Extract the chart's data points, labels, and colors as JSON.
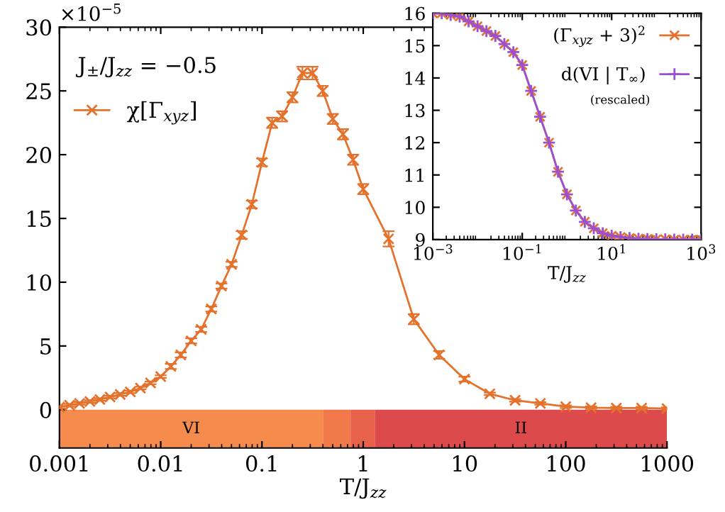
{
  "chart_data": [
    {
      "type": "line",
      "xlabel": "T/J$_{zz}$",
      "log": "x",
      "xlim": [
        0.001,
        1000
      ],
      "xticks": [
        0.001,
        0.01,
        0.1,
        1,
        10,
        100,
        1000
      ],
      "ylim": [
        -3,
        30
      ],
      "yticks": [
        0,
        5,
        10,
        15,
        20,
        25,
        30
      ],
      "grid": false,
      "legend": "top left",
      "marker": "cross",
      "annotations": [
        "×10$^{−5}$",
        "J$_{±}$/J$_{zz}$ = −0.5"
      ],
      "x": [
        0.001,
        0.00126,
        0.00158,
        0.002,
        0.00251,
        0.00316,
        0.00398,
        0.00501,
        0.00631,
        0.00794,
        0.01,
        0.0126,
        0.0158,
        0.02,
        0.0251,
        0.0316,
        0.0398,
        0.0501,
        0.0631,
        0.0794,
        0.1,
        0.126,
        0.158,
        0.2,
        0.251,
        0.316,
        0.398,
        0.501,
        0.631,
        0.794,
        1,
        1.78,
        3.16,
        5.62,
        10,
        17.8,
        31.6,
        56.2,
        100,
        178,
        316,
        562,
        1000
      ],
      "series": [
        {
          "name": "χ[Γ$_{xyz}$]",
          "color": "#e4722c",
          "values": [
            0.2,
            0.35,
            0.5,
            0.65,
            0.8,
            1.0,
            1.2,
            1.4,
            1.7,
            2.1,
            2.6,
            3.4,
            4.3,
            5.4,
            6.3,
            7.9,
            9.7,
            11.4,
            13.7,
            16.1,
            19.4,
            22.5,
            23.0,
            24.5,
            26.4,
            26.4,
            25.0,
            22.8,
            21.6,
            19.6,
            17.3,
            13.4,
            7.1,
            4.3,
            2.4,
            1.25,
            0.74,
            0.5,
            0.24,
            0.16,
            0.13,
            0.13,
            0.09
          ],
          "errors": [
            0.1,
            0.1,
            0.1,
            0.1,
            0.1,
            0.1,
            0.1,
            0.1,
            0.1,
            0.1,
            0.1,
            0.2,
            0.2,
            0.2,
            0.2,
            0.2,
            0.2,
            0.2,
            0.3,
            0.3,
            0.3,
            0.4,
            0.4,
            0.4,
            0.5,
            0.5,
            0.4,
            0.4,
            0.4,
            0.4,
            0.4,
            0.6,
            0.4,
            0.3,
            0.2,
            0.1,
            0.1,
            0.1,
            0.1,
            0.1,
            0.1,
            0.1,
            0.1
          ]
        }
      ],
      "bands": [
        {
          "axis": "x",
          "from": 0.001,
          "to": 0.4,
          "label": "VI",
          "color": "#f68b4e"
        },
        {
          "axis": "x",
          "from": 0.4,
          "to": 0.75,
          "color": "#f27a4a"
        },
        {
          "axis": "x",
          "from": 0.75,
          "to": 1.3,
          "color": "#e8614b"
        },
        {
          "axis": "x",
          "from": 1.3,
          "to": 1000,
          "label": "II",
          "color": "#dd4a4b"
        }
      ]
    },
    {
      "type": "line",
      "xlabel": "T/J$_{zz}$",
      "log": "x",
      "xlim": [
        0.001,
        1000
      ],
      "xticks": [
        {
          "value": 0.001,
          "label": "10$^{−3}$"
        },
        {
          "value": 0.1,
          "label": "10$^{−1}$"
        },
        {
          "value": 10,
          "label": "10$^{1}$"
        },
        {
          "value": 1000,
          "label": "10$^{3}$"
        }
      ],
      "ylim": [
        9,
        16
      ],
      "yticks": [
        9,
        10,
        11,
        12,
        13,
        14,
        15,
        16
      ],
      "grid": false,
      "legend": "top right",
      "annotations": [
        "(rescaled)"
      ],
      "x": [
        0.001,
        0.00158,
        0.00251,
        0.00398,
        0.00631,
        0.01,
        0.0158,
        0.0251,
        0.0398,
        0.0631,
        0.1,
        0.158,
        0.251,
        0.398,
        0.631,
        1,
        1.58,
        2.51,
        3.98,
        6.31,
        10,
        15.8,
        25.1,
        39.8,
        63.1,
        100,
        158,
        251,
        398,
        631,
        1000
      ],
      "series": [
        {
          "name": "(Γ$_{xyz}$ + 3)$^{2}$",
          "color": "#e4722c",
          "marker": "cross",
          "values": [
            16.0,
            16.0,
            15.95,
            15.9,
            15.75,
            15.6,
            15.45,
            15.3,
            15.05,
            14.8,
            14.4,
            13.6,
            12.8,
            12.0,
            11.1,
            10.4,
            9.9,
            9.55,
            9.35,
            9.2,
            9.12,
            9.08,
            9.05,
            9.03,
            9.02,
            9.01,
            9.01,
            9.0,
            9.0,
            9.0,
            9.0
          ]
        },
        {
          "name": "d(VI | T$_{∞}$)",
          "color": "#9b4fd1",
          "marker": "plus",
          "values": [
            16.0,
            16.0,
            15.95,
            15.9,
            15.75,
            15.6,
            15.45,
            15.3,
            15.05,
            14.8,
            14.4,
            13.6,
            12.8,
            12.0,
            11.1,
            10.4,
            9.9,
            9.55,
            9.35,
            9.2,
            9.12,
            9.08,
            9.05,
            9.03,
            9.02,
            9.01,
            9.01,
            9.0,
            9.0,
            9.0,
            9.0
          ]
        }
      ]
    }
  ]
}
